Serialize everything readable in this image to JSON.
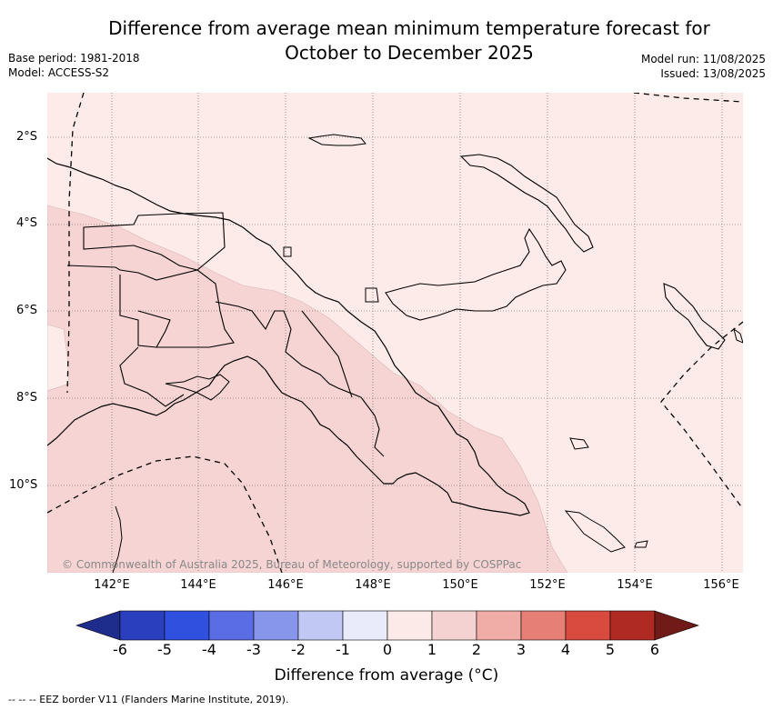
{
  "title_line1": "Difference from average mean minimum temperature forecast for",
  "title_line2": "October to December 2025",
  "meta_left": {
    "base_period": "Base period: 1981-2018",
    "model": "Model: ACCESS-S2"
  },
  "meta_right": {
    "model_run": "Model run: 11/08/2025",
    "issued": "Issued: 13/08/2025"
  },
  "lat_labels": [
    "2°S",
    "4°S",
    "6°S",
    "8°S",
    "10°S"
  ],
  "lon_labels": [
    "142°E",
    "144°E",
    "146°E",
    "148°E",
    "150°E",
    "152°E",
    "154°E",
    "156°E"
  ],
  "copyright": "© Commonwealth of Australia 2025, Bureau of Meteorology, supported by COSPPac",
  "colorbar": {
    "ticks": [
      "-6",
      "-5",
      "-4",
      "-3",
      "-2",
      "-1",
      "0",
      "1",
      "2",
      "3",
      "4",
      "5",
      "6"
    ],
    "colors": [
      "#1e2c8c",
      "#2a3fbd",
      "#3050df",
      "#5a6de4",
      "#8795ea",
      "#c1c8f4",
      "#e9ebfa",
      "#fceae8",
      "#f5d2d2",
      "#f0aca6",
      "#e67f76",
      "#d94b3f",
      "#ae2a23",
      "#701b17"
    ],
    "label": "Difference from average (°C)"
  },
  "map_colors": {
    "light": "#fcebe9",
    "medium": "#f5d4d3"
  },
  "footer": "-- -- -- EEZ border V11 (Flanders Marine Institute, 2019)."
}
